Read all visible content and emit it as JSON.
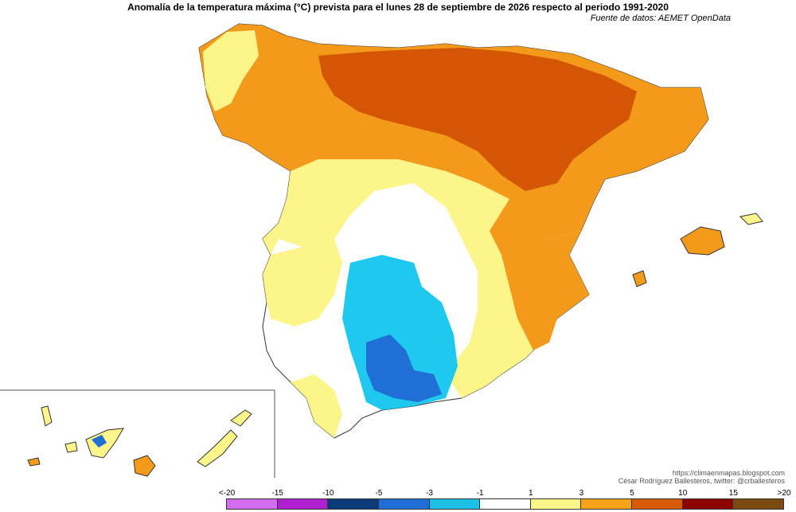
{
  "header": {
    "title": "Anomalía de la temperatura máxima (°C) prevista para el lunes 28 de septiembre de 2026 respecto al periodo 1991-2020",
    "source": "Fuente de datos: AEMET OpenData"
  },
  "credits": {
    "url": "https://climaenmapas.blogspot.com",
    "author": "César Rodríguez Ballesteros, twitter: @crballesteros"
  },
  "legend": {
    "ticks": [
      "<-20",
      "-15",
      "-10",
      "-5",
      "-3",
      "-1",
      "1",
      "3",
      "5",
      "10",
      "15",
      ">20"
    ],
    "colors": [
      "#d36cf0",
      "#b01fcf",
      "#0a3a78",
      "#1f6fd6",
      "#1fc0e8",
      "#ffffff",
      "#fbf58a",
      "#f8a31a",
      "#d95a04",
      "#8c0000",
      "#7a4a10"
    ]
  },
  "map_colors": {
    "land": "#ffffff",
    "yellow": "#fbf58a",
    "orange": "#f39a1a",
    "dark_orange": "#d45605",
    "light_blue": "#1fc8ee",
    "blue": "#1f6fd6",
    "border": "#333333"
  }
}
